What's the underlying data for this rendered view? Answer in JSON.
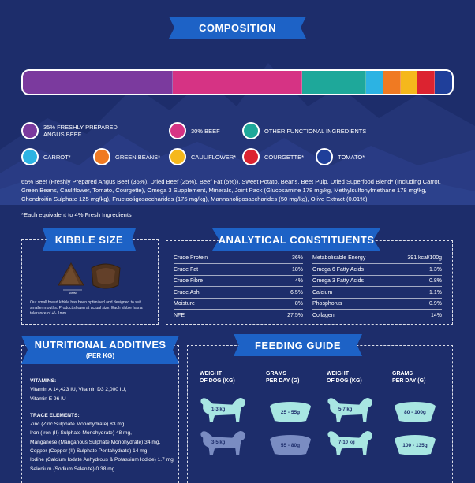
{
  "composition": {
    "title": "COMPOSITION",
    "segments": [
      {
        "name": "35% FRESHLY PREPARED ANGUS BEEF",
        "fraction": 0.35,
        "color": "#7b3a9e"
      },
      {
        "name": "30% BEEF",
        "fraction": 0.3,
        "color": "#d63384"
      },
      {
        "name": "OTHER FUNCTIONAL INGREDIENTS",
        "fraction": 0.15,
        "color": "#1ea89a"
      },
      {
        "name": "CARROT*",
        "fraction": 0.04,
        "color": "#2cb3e3"
      },
      {
        "name": "GREEN BEANS*",
        "fraction": 0.04,
        "color": "#f07a22"
      },
      {
        "name": "CAULIFLOWER*",
        "fraction": 0.04,
        "color": "#f5b81c"
      },
      {
        "name": "COURGETTE*",
        "fraction": 0.04,
        "color": "#dc2330"
      },
      {
        "name": "TOMATO*",
        "fraction": 0.04,
        "color": "#1f3f9a"
      }
    ],
    "legend": [
      {
        "line1": "35% FRESHLY PREPARED",
        "line2": "ANGUS BEEF",
        "color": "#7b3a9e"
      },
      {
        "line1": "30% BEEF",
        "line2": "",
        "color": "#d63384"
      },
      {
        "line1": "OTHER FUNCTIONAL INGREDIENTS",
        "line2": "",
        "color": "#1ea89a"
      },
      {
        "line1": "CARROT*",
        "line2": "",
        "color": "#2cb3e3"
      },
      {
        "line1": "GREEN BEANS*",
        "line2": "",
        "color": "#f07a22"
      },
      {
        "line1": "CAULIFLOWER*",
        "line2": "",
        "color": "#f5b81c"
      },
      {
        "line1": "COURGETTE*",
        "line2": "",
        "color": "#dc2330"
      },
      {
        "line1": "TOMATO*",
        "line2": "",
        "color": "#1f3f9a"
      }
    ],
    "ingredients": "65% Beef (Freshly Prepared Angus Beef (35%), Dried Beef (25%), Beef Fat (5%)), Sweet Potato, Beans, Beet Pulp, Dried Superfood Blend* (Including Carrot, Green Beans, Cauliflower, Tomato, Courgette), Omega 3 Supplement, Minerals, Joint Pack (Glucosamine 178 mg/kg, Methylsulfonylmethane 178 mg/kg, Chondroitin Sulphate 125 mg/kg), Fructooligosaccharides (175 mg/kg), Mannanoligosaccharides (50 mg/kg), Olive Extract (0.01%)",
    "note": "*Each equivalent to 4% Fresh Ingredients"
  },
  "kibble": {
    "title": "KIBBLE SIZE",
    "scale_label": "10MM",
    "note": "Our small breed kibble has been optimised and designed to suit smaller mouths. Product shown at actual size. Each kibble has a tolerance of +/- 1mm."
  },
  "analytical": {
    "title": "ANALYTICAL CONSTITUENTS",
    "left": [
      {
        "label": "Crude Protein",
        "value": "36%"
      },
      {
        "label": "Crude Fat",
        "value": "18%"
      },
      {
        "label": "Crude Fibre",
        "value": "4%"
      },
      {
        "label": "Crude Ash",
        "value": "6.5%"
      },
      {
        "label": "Moisture",
        "value": "8%"
      },
      {
        "label": "NFE",
        "value": "27.5%"
      }
    ],
    "right": [
      {
        "label": "Metabolisable Energy",
        "value": "391 kcal/100g"
      },
      {
        "label": "Omega 6 Fatty Acids",
        "value": "1.3%"
      },
      {
        "label": "Omega 3 Fatty Acids",
        "value": "0.8%"
      },
      {
        "label": "Calcium",
        "value": "1.1%"
      },
      {
        "label": "Phosphorus",
        "value": "0.9%"
      },
      {
        "label": "Collagen",
        "value": "14%"
      }
    ]
  },
  "nutritional": {
    "title": "NUTRITIONAL ADDITIVES",
    "subtitle": "(PER KG)",
    "vitamins_heading": "VITAMINS:",
    "vitamins": [
      "Vitamin A 14,423 IU, Vitamin D3 2,000 IU,",
      "Vitamin E 96 IU"
    ],
    "trace_heading": "TRACE ELEMENTS:",
    "trace": [
      "Zinc (Zinc Sulphate Monohydrate) 83 mg,",
      "Iron (Iron (II) Sulphate Monohydrate) 48 mg,",
      "Manganese (Manganous Sulphate Monohydrate) 34 mg,",
      "Copper (Copper (II) Sulphate Pentahydrate) 14 mg,",
      "Iodine (Calcium Iodate Anhydrous & Potassium Iodide) 1.7 mg,",
      "Selenium (Sodium Selenite) 0.38 mg"
    ]
  },
  "feeding": {
    "title": "FEEDING GUIDE",
    "col_weight": [
      "WEIGHT",
      "OF DOG (kg)"
    ],
    "col_grams": [
      "GRAMS",
      "PER DAY (g)"
    ],
    "rows": [
      {
        "weight": "1-3 kg",
        "grams": "25 - 55g",
        "color": "#a8e6e2"
      },
      {
        "weight": "3-5 kg",
        "grams": "55 - 80g",
        "color": "#7a8cc2"
      }
    ],
    "rows_right": [
      {
        "weight": "5-7 kg",
        "grams": "80 - 100g",
        "color": "#a8e6e2"
      },
      {
        "weight": "7-10 kg",
        "grams": "100 - 135g",
        "color": "#a8e6e2"
      }
    ]
  }
}
